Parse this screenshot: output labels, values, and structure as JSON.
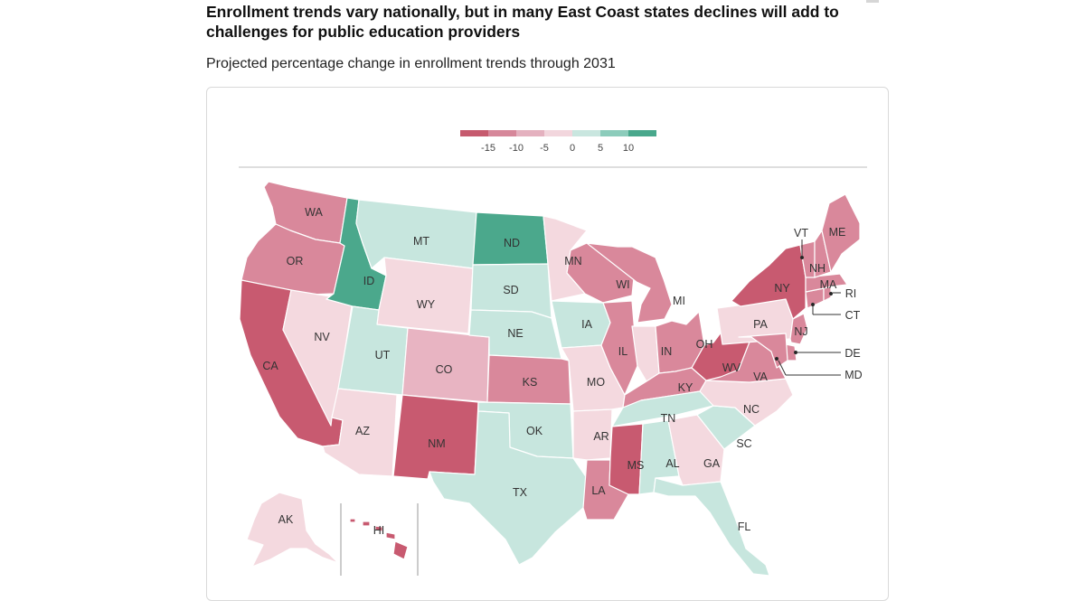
{
  "header": {
    "title": "Enrollment trends vary nationally, but in many East Coast states declines will add to challenges for public education providers",
    "subtitle": "Projected percentage change in enrollment trends through 2031"
  },
  "legend": {
    "colors": [
      "#c65a6e",
      "#d6879a",
      "#e4b1bf",
      "#f2d6dd",
      "#c9e6df",
      "#8cccbb",
      "#49a88c"
    ],
    "ticks": [
      "-15",
      "-10",
      "-5",
      "0",
      "5",
      "10"
    ]
  },
  "palette": {
    "c15": "#c85a70",
    "c10": "#d9889b",
    "c5": "#e8b4c2",
    "c0": "#f4d9df",
    "p5": "#c7e6de",
    "p10": "#4ba88c",
    "outline": "#ffffff",
    "label": "#333333"
  },
  "states": {
    "WA": {
      "label": "WA",
      "bin": "c10"
    },
    "OR": {
      "label": "OR",
      "bin": "c10"
    },
    "CA": {
      "label": "CA",
      "bin": "c15"
    },
    "ID": {
      "label": "ID",
      "bin": "p10"
    },
    "NV": {
      "label": "NV",
      "bin": "c0"
    },
    "MT": {
      "label": "MT",
      "bin": "p5"
    },
    "WY": {
      "label": "WY",
      "bin": "c0"
    },
    "UT": {
      "label": "UT",
      "bin": "p5"
    },
    "AZ": {
      "label": "AZ",
      "bin": "c0"
    },
    "CO": {
      "label": "CO",
      "bin": "c5"
    },
    "NM": {
      "label": "NM",
      "bin": "c15"
    },
    "ND": {
      "label": "ND",
      "bin": "p10"
    },
    "SD": {
      "label": "SD",
      "bin": "p5"
    },
    "NE": {
      "label": "NE",
      "bin": "p5"
    },
    "KS": {
      "label": "KS",
      "bin": "c10"
    },
    "OK": {
      "label": "OK",
      "bin": "p5"
    },
    "TX": {
      "label": "TX",
      "bin": "p5"
    },
    "MN": {
      "label": "MN",
      "bin": "c0"
    },
    "IA": {
      "label": "IA",
      "bin": "p5"
    },
    "MO": {
      "label": "MO",
      "bin": "c0"
    },
    "AR": {
      "label": "AR",
      "bin": "c0"
    },
    "LA": {
      "label": "LA",
      "bin": "c10"
    },
    "WI": {
      "label": "WI",
      "bin": "c10"
    },
    "IL": {
      "label": "IL",
      "bin": "c10"
    },
    "MI": {
      "label": "MI",
      "bin": "c10"
    },
    "IN": {
      "label": "IN",
      "bin": "c0"
    },
    "OH": {
      "label": "OH",
      "bin": "c10"
    },
    "KY": {
      "label": "KY",
      "bin": "c10"
    },
    "TN": {
      "label": "TN",
      "bin": "p5"
    },
    "MS": {
      "label": "MS",
      "bin": "c15"
    },
    "AL": {
      "label": "AL",
      "bin": "p5"
    },
    "GA": {
      "label": "GA",
      "bin": "c0"
    },
    "FL": {
      "label": "FL",
      "bin": "p5"
    },
    "SC": {
      "label": "SC",
      "bin": "p5"
    },
    "NC": {
      "label": "NC",
      "bin": "c0"
    },
    "VA": {
      "label": "VA",
      "bin": "c10"
    },
    "WV": {
      "label": "WV",
      "bin": "c15"
    },
    "PA": {
      "label": "PA",
      "bin": "c0"
    },
    "NY": {
      "label": "NY",
      "bin": "c15"
    },
    "NJ": {
      "label": "NJ",
      "bin": "c10"
    },
    "DE": {
      "label": "DE",
      "bin": "c10"
    },
    "MD": {
      "label": "MD",
      "bin": "c10"
    },
    "CT": {
      "label": "CT",
      "bin": "c10"
    },
    "RI": {
      "label": "RI",
      "bin": "c10"
    },
    "MA": {
      "label": "MA",
      "bin": "c10"
    },
    "VT": {
      "label": "VT",
      "bin": "c10"
    },
    "NH": {
      "label": "NH",
      "bin": "c10"
    },
    "ME": {
      "label": "ME",
      "bin": "c10"
    },
    "AK": {
      "label": "AK",
      "bin": "c0"
    },
    "HI": {
      "label": "HI",
      "bin": "c15"
    }
  }
}
